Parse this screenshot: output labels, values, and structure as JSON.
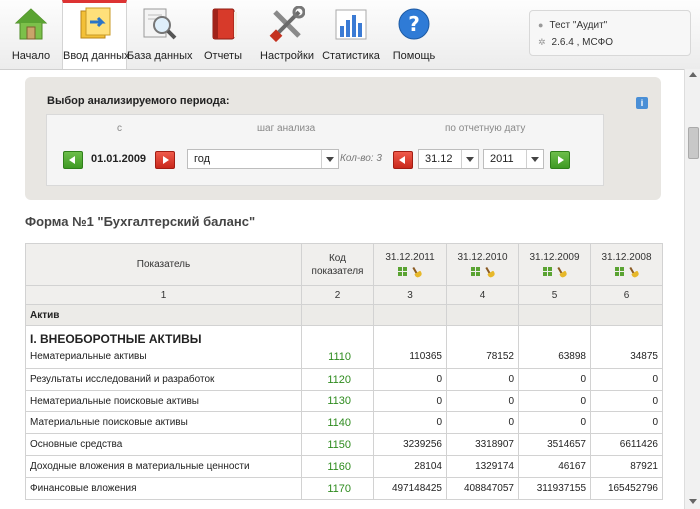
{
  "toolbar": {
    "items": [
      {
        "label": "Начало",
        "icon": "home-icon"
      },
      {
        "label": "Ввод данных",
        "icon": "data-entry-icon",
        "active": true
      },
      {
        "label": "База данных",
        "icon": "database-search-icon"
      },
      {
        "label": "Отчеты",
        "icon": "reports-book-icon"
      },
      {
        "label": "Настройки",
        "icon": "settings-tools-icon"
      },
      {
        "label": "Статистика",
        "icon": "statistics-chart-icon"
      },
      {
        "label": "Помощь",
        "icon": "help-icon"
      }
    ],
    "accent_color": "#d33333"
  },
  "user": {
    "name": "Тест \"Аудит\"",
    "version": "2.6.4 , МСФО"
  },
  "period": {
    "title": "Выбор анализируемого периода:",
    "col_from": "с",
    "col_step": "шаг анализа",
    "col_to": "по отчетную дату",
    "from_date": "01.01.2009",
    "step_value": "год",
    "count_label": "Кол-во: 3",
    "to_day": "31.12",
    "to_year": "2011"
  },
  "form": {
    "title": "Форма №1 \"Бухгалтерский баланс\"",
    "headers": {
      "indicator": "Показатель",
      "code": "Код показателя",
      "dates": [
        "31.12.2011",
        "31.12.2010",
        "31.12.2009",
        "31.12.2008"
      ],
      "numbers": [
        "1",
        "2",
        "3",
        "4",
        "5",
        "6"
      ]
    },
    "section": "Актив",
    "subsection": "I. ВНЕОБОРОТНЫЕ АКТИВЫ",
    "rows": [
      {
        "name": "Нематериальные активы",
        "code": "1110",
        "v": [
          "110365",
          "78152",
          "63898",
          "34875"
        ]
      },
      {
        "name": "Результаты исследований и разработок",
        "code": "1120",
        "v": [
          "0",
          "0",
          "0",
          "0"
        ]
      },
      {
        "name": "Нематериальные поисковые активы",
        "code": "1130",
        "v": [
          "0",
          "0",
          "0",
          "0"
        ]
      },
      {
        "name": "Материальные поисковые активы",
        "code": "1140",
        "v": [
          "0",
          "0",
          "0",
          "0"
        ]
      },
      {
        "name": "Основные средства",
        "code": "1150",
        "v": [
          "3239256",
          "3318907",
          "3514657",
          "6611426"
        ]
      },
      {
        "name": "Доходные вложения в материальные ценности",
        "code": "1160",
        "v": [
          "28104",
          "1329174",
          "46167",
          "87921"
        ]
      },
      {
        "name": "Финансовые вложения",
        "code": "1170",
        "v": [
          "497148425",
          "408847057",
          "311937155",
          "165452796"
        ]
      }
    ]
  }
}
